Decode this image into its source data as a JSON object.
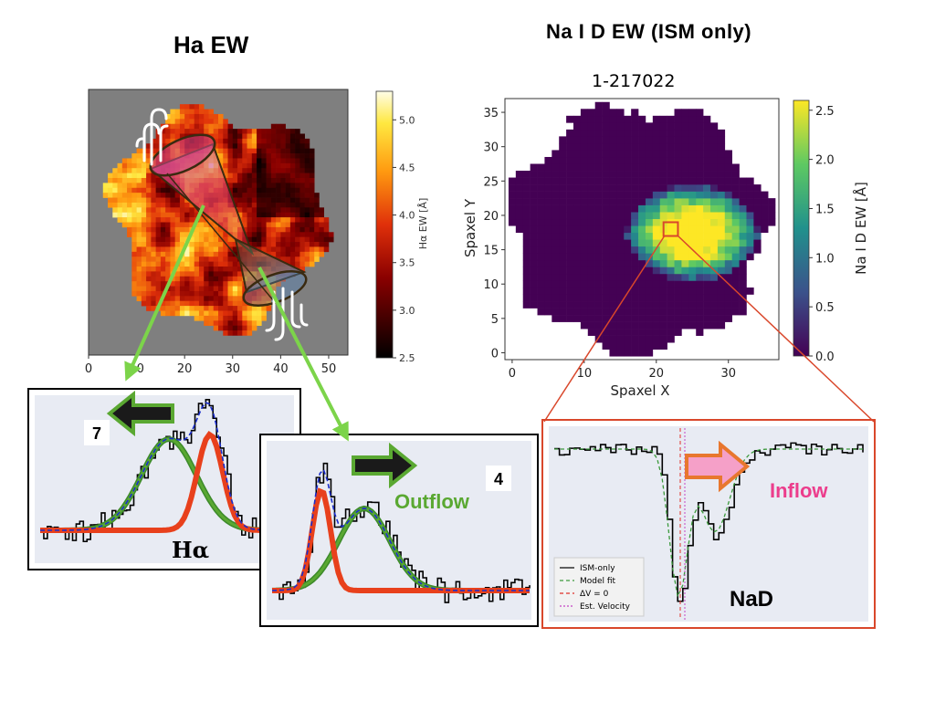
{
  "slide": {
    "left_title": "Ha EW",
    "right_title": "Na I D EW (ISM only)"
  },
  "colors": {
    "arrow_green": "#7cd44a",
    "arrow_red": "#d9472b",
    "outflow_text": "#5aa832",
    "inflow_text": "#ec3d8c",
    "inflow_arrow_fill": "#f5a0c8",
    "inflow_arrow_stroke": "#e8772e",
    "panel_bg": "#e8ebf3"
  },
  "chart_data": [
    {
      "id": "ha-ew-map",
      "type": "heatmap",
      "title": "",
      "xticks": [
        "0",
        "10",
        "20",
        "30",
        "40",
        "50"
      ],
      "xlim": [
        0,
        54
      ],
      "colorbar": {
        "label": "Hα EW [Å]",
        "ticks": [
          "5.0",
          "4.5",
          "4.0",
          "3.5",
          "3.0",
          "2.5"
        ],
        "range": [
          2.5,
          5.3
        ],
        "colormap": "hot"
      }
    },
    {
      "id": "nad-ew-map",
      "type": "heatmap",
      "title": "1-217022",
      "xlabel": "Spaxel X",
      "ylabel": "Spaxel Y",
      "xticks": [
        "0",
        "10",
        "20",
        "30"
      ],
      "yticks": [
        "35",
        "30",
        "25",
        "20",
        "15",
        "10",
        "5",
        "0"
      ],
      "xlim": [
        -1,
        37
      ],
      "ylim": [
        -1,
        37
      ],
      "colorbar": {
        "label": "Na I D EW [Å]",
        "ticks": [
          "2.5",
          "2.0",
          "1.5",
          "1.0",
          "0.5",
          "0.0"
        ],
        "range": [
          0,
          2.6
        ],
        "colormap": "viridis"
      },
      "highlight_spaxel": [
        22,
        18
      ]
    },
    {
      "id": "ha-spectrum-7",
      "type": "line",
      "label_number": "7",
      "annotation": "Hα",
      "series": [
        "data",
        "blue-component",
        "red-component",
        "total-fit"
      ]
    },
    {
      "id": "ha-spectrum-4",
      "type": "line",
      "label_number": "4",
      "annotation": "Outflow",
      "series": [
        "data",
        "blue-component",
        "red-component",
        "total-fit"
      ]
    },
    {
      "id": "nad-spectrum",
      "type": "line",
      "annotation": "Inflow",
      "label": "NaD",
      "legend": [
        "ISM-only",
        "Model fit",
        "ΔV = 0",
        "Est. Velocity"
      ],
      "legend_position": "bottom-left"
    }
  ]
}
